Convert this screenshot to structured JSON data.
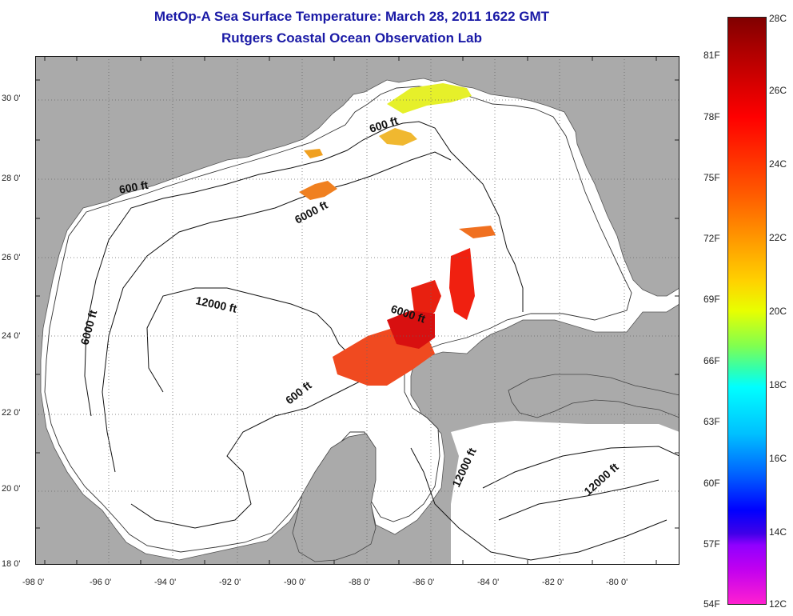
{
  "title": {
    "line1": "MetOp-A Sea Surface Temperature:  March 28, 2011 1622 GMT",
    "line2": "Rutgers Coastal Ocean Observation Lab"
  },
  "map": {
    "lon_labels": [
      "-98 0'",
      "-96 0'",
      "-94 0'",
      "-92 0'",
      "-90 0'",
      "-88 0'",
      "-86 0'",
      "-84 0'",
      "-82 0'",
      "-80 0'"
    ],
    "lat_labels": [
      "30 0'",
      "28 0'",
      "26 0'",
      "24 0'",
      "22 0'",
      "20 0'",
      "18 0'"
    ],
    "contour_labels": [
      "600 ft",
      "600 ft",
      "6000 ft",
      "6000 ft",
      "6000 ft",
      "12000 ft",
      "600 ft",
      "12000 ft",
      "12000 ft"
    ],
    "land_color": "#aaaaaa",
    "ocean_color": "#ffffff"
  },
  "colorbar": {
    "celsius_labels": [
      "28C",
      "26C",
      "24C",
      "22C",
      "20C",
      "18C",
      "16C",
      "14C",
      "12C"
    ],
    "fahrenheit_labels": [
      "81F",
      "78F",
      "75F",
      "72F",
      "69F",
      "66F",
      "63F",
      "60F",
      "57F",
      "54F"
    ]
  }
}
